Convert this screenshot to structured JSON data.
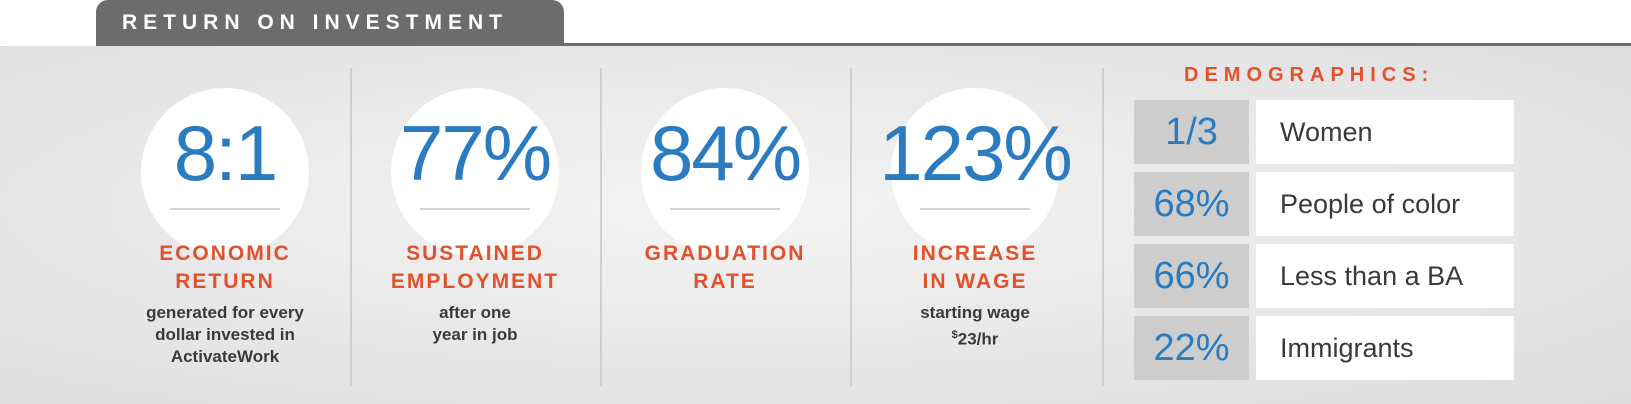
{
  "header": {
    "title": "RETURN ON INVESTMENT"
  },
  "stats": [
    {
      "value": "8:1",
      "title_line1": "ECONOMIC",
      "title_line2": "RETURN",
      "desc_line1": "generated for every",
      "desc_line2": "dollar invested in",
      "desc_line3": "ActivateWork"
    },
    {
      "value": "77%",
      "title_line1": "SUSTAINED",
      "title_line2": "EMPLOYMENT",
      "desc_line1": "after one",
      "desc_line2": "year in job"
    },
    {
      "value": "84%",
      "title_line1": "GRADUATION",
      "title_line2": "RATE"
    },
    {
      "value": "123%",
      "title_line1": "INCREASE",
      "title_line2": "IN WAGE",
      "desc_line1": "starting wage",
      "desc_line2_sup": "$",
      "desc_line2": "23/hr"
    }
  ],
  "demographics": {
    "title": "DEMOGRAPHICS:",
    "rows": [
      {
        "value": "1/3",
        "label": "Women"
      },
      {
        "value": "68%",
        "label": "People of color"
      },
      {
        "value": "66%",
        "label": "Less than a BA"
      },
      {
        "value": "22%",
        "label": "Immigrants"
      }
    ]
  },
  "colors": {
    "accent_orange": "#e0522b",
    "accent_blue": "#2a7bc0",
    "tab_gray": "#6c6c6c"
  }
}
